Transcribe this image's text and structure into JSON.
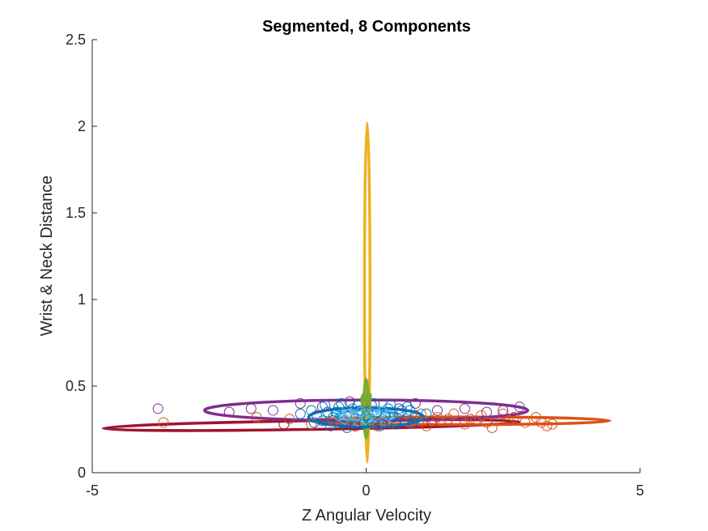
{
  "chart_data": {
    "type": "scatter",
    "title": "Segmented, 8 Components",
    "xlabel": "Z Angular Velocity",
    "ylabel": "Wrist & Neck Distance",
    "xlim": [
      -5,
      5
    ],
    "ylim": [
      0,
      2.5
    ],
    "xticks": [
      -5,
      0,
      5
    ],
    "xtick_labels": [
      "-5",
      "0",
      "5"
    ],
    "yticks": [
      0,
      0.5,
      1,
      1.5,
      2,
      2.5
    ],
    "ytick_labels": [
      "0",
      "0.5",
      "1",
      "1.5",
      "2",
      "2.5"
    ],
    "grid": false,
    "box": false,
    "ellipses": [
      {
        "color": "#A2142F",
        "cx": -1.0,
        "cy": 0.275,
        "rx": 3.8,
        "ry": 0.025,
        "angle_deg": 0.9
      },
      {
        "color": "#D95319",
        "cx": 1.7,
        "cy": 0.3,
        "rx": 2.75,
        "ry": 0.022,
        "angle_deg": 0
      },
      {
        "color": "#7E2F8E",
        "cx": 0.0,
        "cy": 0.36,
        "rx": 2.95,
        "ry": 0.06,
        "angle_deg": 0
      },
      {
        "color": "#EDB120",
        "cx": 0.02,
        "cy": 1.04,
        "rx": 0.05,
        "ry": 0.98,
        "angle_deg": 0
      },
      {
        "color": "#77AC30",
        "cx": 0.0,
        "cy": 0.37,
        "rx": 0.04,
        "ry": 0.17,
        "angle_deg": 0
      },
      {
        "color": "#4DBEEE",
        "cx": 0.0,
        "cy": 0.33,
        "rx": 0.55,
        "ry": 0.03,
        "angle_deg": 0
      },
      {
        "color": "#0072BD",
        "cx": 0.0,
        "cy": 0.32,
        "rx": 1.05,
        "ry": 0.055,
        "angle_deg": 0
      }
    ],
    "series": [
      {
        "color": "#7E2F8E",
        "points": [
          [
            -3.8,
            0.37
          ],
          [
            -2.5,
            0.35
          ],
          [
            -1.7,
            0.36
          ],
          [
            -0.8,
            0.38
          ],
          [
            0.1,
            0.39
          ],
          [
            0.6,
            0.37
          ],
          [
            1.3,
            0.36
          ],
          [
            2.2,
            0.35
          ],
          [
            2.8,
            0.38
          ],
          [
            -0.3,
            0.41
          ],
          [
            0.9,
            0.4
          ],
          [
            -1.2,
            0.4
          ],
          [
            1.8,
            0.37
          ],
          [
            -2.1,
            0.37
          ],
          [
            2.5,
            0.36
          ]
        ]
      },
      {
        "color": "#D95319",
        "points": [
          [
            -3.7,
            0.29
          ],
          [
            -2.0,
            0.32
          ],
          [
            -1.4,
            0.31
          ],
          [
            -0.6,
            0.3
          ],
          [
            0.5,
            0.3
          ],
          [
            1.0,
            0.34
          ],
          [
            1.3,
            0.32
          ],
          [
            1.5,
            0.31
          ],
          [
            1.8,
            0.28
          ],
          [
            2.0,
            0.3
          ],
          [
            2.2,
            0.29
          ],
          [
            2.3,
            0.26
          ],
          [
            2.5,
            0.34
          ],
          [
            2.6,
            0.3
          ],
          [
            2.7,
            0.32
          ],
          [
            2.9,
            0.29
          ],
          [
            3.1,
            0.32
          ],
          [
            3.3,
            0.27
          ],
          [
            3.4,
            0.28
          ],
          [
            3.2,
            0.29
          ],
          [
            0.8,
            0.29
          ],
          [
            1.6,
            0.34
          ],
          [
            2.1,
            0.33
          ],
          [
            -1.0,
            0.28
          ],
          [
            0.2,
            0.27
          ],
          [
            1.1,
            0.27
          ],
          [
            1.9,
            0.31
          ],
          [
            -0.3,
            0.33
          ]
        ]
      },
      {
        "color": "#0072BD",
        "points": [
          [
            -1.0,
            0.36
          ],
          [
            -0.9,
            0.33
          ],
          [
            -0.8,
            0.3
          ],
          [
            -0.7,
            0.35
          ],
          [
            -0.6,
            0.32
          ],
          [
            -0.5,
            0.38
          ],
          [
            -0.4,
            0.3
          ],
          [
            -0.3,
            0.34
          ],
          [
            -0.2,
            0.31
          ],
          [
            -0.1,
            0.36
          ],
          [
            0.0,
            0.33
          ],
          [
            0.1,
            0.29
          ],
          [
            0.2,
            0.35
          ],
          [
            0.3,
            0.31
          ],
          [
            0.4,
            0.37
          ],
          [
            0.5,
            0.32
          ],
          [
            0.6,
            0.34
          ],
          [
            0.7,
            0.3
          ],
          [
            0.8,
            0.36
          ],
          [
            0.9,
            0.33
          ],
          [
            -0.95,
            0.29
          ],
          [
            -0.65,
            0.27
          ],
          [
            -0.35,
            0.26
          ],
          [
            -0.05,
            0.28
          ],
          [
            0.25,
            0.27
          ],
          [
            0.55,
            0.28
          ],
          [
            0.85,
            0.29
          ],
          [
            -0.75,
            0.39
          ],
          [
            -0.45,
            0.4
          ],
          [
            -0.15,
            0.39
          ],
          [
            0.15,
            0.4
          ],
          [
            0.45,
            0.39
          ],
          [
            0.75,
            0.38
          ],
          [
            -1.2,
            0.34
          ],
          [
            1.1,
            0.34
          ],
          [
            -0.55,
            0.35
          ],
          [
            0.05,
            0.31
          ],
          [
            0.35,
            0.33
          ],
          [
            -0.25,
            0.37
          ],
          [
            0.65,
            0.36
          ]
        ]
      },
      {
        "color": "#4DBEEE",
        "points": [
          [
            -0.5,
            0.33
          ],
          [
            -0.4,
            0.31
          ],
          [
            -0.3,
            0.34
          ],
          [
            -0.2,
            0.32
          ],
          [
            -0.1,
            0.35
          ],
          [
            0.0,
            0.31
          ],
          [
            0.1,
            0.34
          ],
          [
            0.2,
            0.32
          ],
          [
            0.3,
            0.35
          ],
          [
            0.4,
            0.33
          ],
          [
            -0.15,
            0.3
          ],
          [
            0.15,
            0.36
          ],
          [
            -0.35,
            0.36
          ],
          [
            0.35,
            0.3
          ]
        ]
      },
      {
        "color": "#77AC30",
        "points": [
          [
            0.0,
            0.43
          ],
          [
            0.0,
            0.42
          ],
          [
            0.01,
            0.44
          ],
          [
            -0.01,
            0.41
          ],
          [
            0.0,
            0.4
          ],
          [
            0.0,
            0.38
          ]
        ]
      },
      {
        "color": "#A2142F",
        "points": [
          [
            -0.2,
            0.27
          ],
          [
            0.3,
            0.28
          ],
          [
            -1.5,
            0.28
          ],
          [
            1.2,
            0.29
          ]
        ]
      }
    ]
  }
}
